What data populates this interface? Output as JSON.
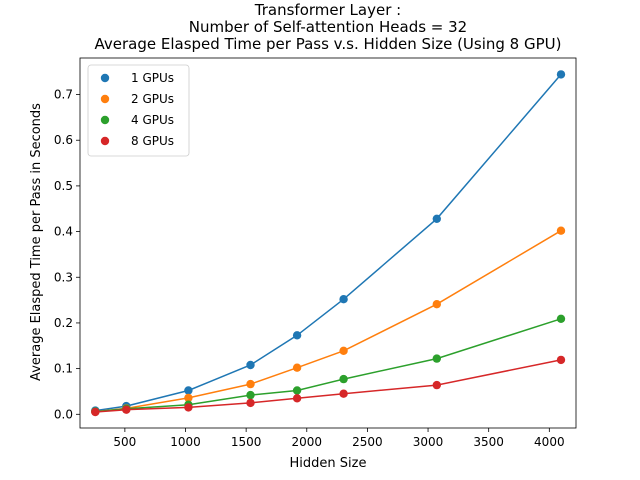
{
  "chart_data": {
    "type": "line",
    "title_lines": [
      "Transformer Layer :",
      "Number of Self-attention Heads = 32",
      "Average Elasped Time per Pass v.s. Hidden Size (Using 8 GPU)"
    ],
    "xlabel": "Hidden Size",
    "ylabel": "Average Elasped Time per Pass in Seconds",
    "xlim": [
      130,
      4220
    ],
    "ylim": [
      -0.03,
      0.78
    ],
    "xticks": [
      500,
      1000,
      1500,
      2000,
      2500,
      3000,
      3500,
      4000
    ],
    "yticks": [
      0.0,
      0.1,
      0.2,
      0.3,
      0.4,
      0.5,
      0.6,
      0.7
    ],
    "ytick_labels": [
      "0.0",
      "0.1",
      "0.2",
      "0.3",
      "0.4",
      "0.5",
      "0.6",
      "0.7"
    ],
    "x": [
      256,
      512,
      1024,
      1536,
      1920,
      2304,
      3072,
      4096
    ],
    "grid": false,
    "legend_position": "upper-left",
    "series": [
      {
        "name": "1 GPUs",
        "color": "#1f77b4",
        "values": [
          0.008,
          0.018,
          0.052,
          0.108,
          0.173,
          0.252,
          0.428,
          0.744
        ]
      },
      {
        "name": "2 GPUs",
        "color": "#ff7f0e",
        "values": [
          0.006,
          0.013,
          0.036,
          0.066,
          0.102,
          0.139,
          0.241,
          0.402
        ]
      },
      {
        "name": "4 GPUs",
        "color": "#2ca02c",
        "values": [
          0.006,
          0.012,
          0.021,
          0.042,
          0.052,
          0.077,
          0.122,
          0.209
        ]
      },
      {
        "name": "8 GPUs",
        "color": "#d62728",
        "values": [
          0.005,
          0.01,
          0.015,
          0.025,
          0.035,
          0.045,
          0.064,
          0.119
        ]
      }
    ]
  }
}
